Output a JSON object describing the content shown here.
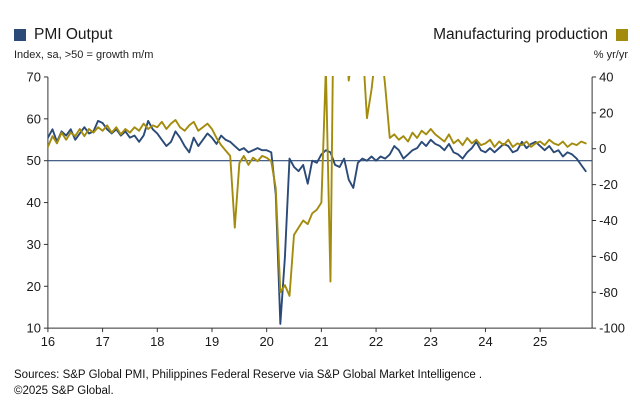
{
  "colors": {
    "axis": "#333333",
    "text": "#1a1a1a",
    "ref_line": "#2b4a77",
    "background": "#ffffff"
  },
  "footer": {
    "sources": "Sources: S&P Global PMI, Philippines Federal Reserve via S&P Global Market Intelligence .",
    "copyright": "©2025 S&P Global."
  },
  "chart_data": {
    "type": "line",
    "title": "",
    "freq": "monthly",
    "x_start_year": 2016,
    "x_start_month": 1,
    "x_domain": [
      2016,
      2025.95
    ],
    "x_tick_labels": [
      "16",
      "17",
      "18",
      "19",
      "20",
      "21",
      "22",
      "23",
      "24",
      "25"
    ],
    "left_axis": {
      "label": "Index, sa, >50 = growth m/m",
      "min": 10,
      "max": 70,
      "ticks": [
        10,
        20,
        30,
        40,
        50,
        60,
        70
      ]
    },
    "right_axis": {
      "label": "% yr/yr",
      "min": -100,
      "max": 40,
      "ticks": [
        -100,
        -80,
        -60,
        -40,
        -20,
        0,
        20,
        40
      ]
    },
    "reference_line_left_value": 50,
    "grid": false,
    "legend_position": "top",
    "series": [
      {
        "name": "PMI Output",
        "axis": "left",
        "color": "#2b4a77",
        "data_name": "pmi-output-line",
        "values": [
          55.5,
          57.5,
          54.5,
          57,
          56,
          57.5,
          55,
          56.5,
          58,
          56.5,
          57,
          59.5,
          59,
          57.5,
          56.5,
          57.5,
          56,
          57,
          55.5,
          56,
          54.5,
          56,
          59.5,
          57.5,
          56.5,
          55,
          53.5,
          54.5,
          57,
          55.5,
          53.5,
          52,
          55.5,
          53.5,
          55,
          56.5,
          55.5,
          54,
          56,
          55,
          54.5,
          53.5,
          52.5,
          53,
          52,
          52.5,
          53,
          52.5,
          52.5,
          52,
          42,
          11,
          27,
          50.5,
          48.5,
          47.5,
          49,
          44.5,
          50,
          49.5,
          51.5,
          52.5,
          52,
          49,
          48.5,
          50.5,
          45.5,
          43.5,
          49.5,
          50.5,
          50,
          51,
          50,
          51,
          50.5,
          51.5,
          53.5,
          52.5,
          50.5,
          51.5,
          52.5,
          53,
          54.5,
          53.5,
          55,
          54,
          53.5,
          52.5,
          54,
          52,
          51.5,
          50.5,
          52,
          53,
          54.5,
          52.5,
          52,
          53,
          52,
          53,
          54,
          53.5,
          52,
          52.5,
          54.5,
          53,
          54,
          54.5,
          53.5,
          52.5,
          53.5,
          52,
          52.5,
          51,
          52,
          51.5,
          50.5,
          49,
          47.5
        ]
      },
      {
        "name": "Manufacturing production",
        "axis": "right",
        "color": "#a38b0d",
        "data_name": "manufacturing-production-line",
        "values": [
          1,
          7,
          3,
          9,
          5,
          9,
          7,
          11,
          7,
          11,
          9,
          12,
          10,
          13,
          9,
          12,
          8,
          11,
          9,
          12,
          10,
          14,
          11,
          13,
          12,
          15,
          11,
          14,
          16,
          12,
          10,
          13,
          15,
          10,
          12,
          14,
          11,
          6,
          2,
          -1,
          -4,
          -44,
          -8,
          -4,
          -9,
          -5,
          -7,
          -4,
          -5,
          -7,
          -22,
          -80,
          -76,
          -82,
          -48,
          -44,
          -40,
          -42,
          -36,
          -34,
          -30,
          45,
          -74,
          155,
          120,
          90,
          38,
          55,
          45,
          60,
          17,
          33,
          55,
          60,
          35,
          6,
          8,
          5,
          7,
          4,
          9,
          6,
          10,
          8,
          11,
          8,
          6,
          4,
          8,
          3,
          5,
          2,
          6,
          3,
          5,
          2,
          3,
          5,
          1,
          4,
          2,
          5,
          1,
          3,
          2,
          4,
          1,
          3,
          4,
          2,
          5,
          3,
          2,
          4,
          1,
          3,
          2,
          4,
          3
        ]
      }
    ]
  }
}
